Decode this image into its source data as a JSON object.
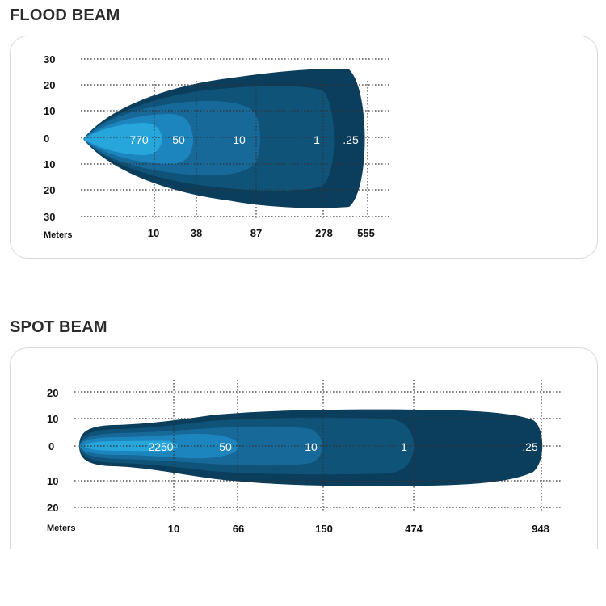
{
  "flood": {
    "title": "FLOOD BEAM",
    "axis_unit": "Meters",
    "colors": [
      "#0b3d5c",
      "#0f5378",
      "#17699a",
      "#1d85bd",
      "#27a6dc",
      "#3cc0ee"
    ]
  },
  "spot": {
    "title": "SPOT BEAM",
    "axis_unit": "Meters",
    "colors": [
      "#0b3d5c",
      "#0f5378",
      "#17699a",
      "#1d85bd",
      "#27a6dc",
      "#3cc0ee"
    ]
  },
  "chart_data": [
    {
      "type": "area",
      "title": "FLOOD BEAM",
      "xlabel": "Meters",
      "ylabel": "",
      "y_ticks": [
        "30",
        "20",
        "10",
        "0",
        "10",
        "20",
        "30"
      ],
      "x_ticks": [
        "10",
        "38",
        "87",
        "278",
        "555"
      ],
      "isolux_labels": [
        "770",
        "50",
        "10",
        "1",
        ".25"
      ],
      "grid": true
    },
    {
      "type": "area",
      "title": "SPOT BEAM",
      "xlabel": "Meters",
      "ylabel": "",
      "y_ticks": [
        "20",
        "10",
        "0",
        "10",
        "20"
      ],
      "x_ticks": [
        "10",
        "66",
        "150",
        "474",
        "948"
      ],
      "isolux_labels": [
        "2250",
        "50",
        "10",
        "1",
        ".25"
      ],
      "grid": true
    }
  ]
}
